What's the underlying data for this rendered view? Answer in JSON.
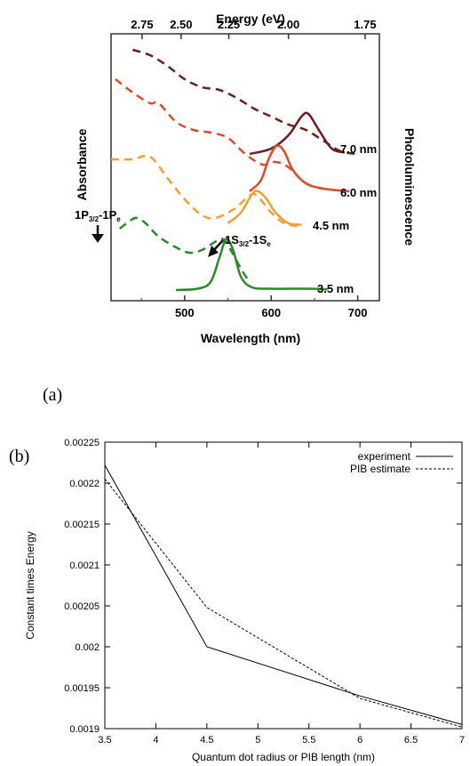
{
  "panel_labels": {
    "a": "(a)",
    "b": "(b)"
  },
  "chart_data": [
    {
      "type": "line",
      "xlabel": "Wavelength (nm)",
      "xticks": [
        "500",
        "600",
        "700"
      ],
      "top_axis_label": "Energy (eV)",
      "top_ticks": [
        "2.75",
        "2.50",
        "2.25",
        "2.00",
        "1.75"
      ],
      "ylabel_left": "Absorbance",
      "ylabel_right": "Photoluminescence",
      "xlim": [
        415,
        725
      ],
      "sizes": [
        {
          "label": "7.0 nm",
          "color": "#6b1e1e",
          "absorbance": [
            [
              440,
              0.94
            ],
            [
              460,
              0.92
            ],
            [
              480,
              0.88
            ],
            [
              500,
              0.83
            ],
            [
              520,
              0.8
            ],
            [
              540,
              0.79
            ],
            [
              560,
              0.76
            ],
            [
              580,
              0.72
            ],
            [
              600,
              0.69
            ],
            [
              620,
              0.66
            ],
            [
              640,
              0.64
            ],
            [
              660,
              0.6
            ],
            [
              680,
              0.56
            ],
            [
              700,
              0.55
            ]
          ],
          "pl": [
            [
              575,
              0.55
            ],
            [
              600,
              0.57
            ],
            [
              620,
              0.62
            ],
            [
              635,
              0.69
            ],
            [
              643,
              0.7
            ],
            [
              655,
              0.64
            ],
            [
              670,
              0.57
            ],
            [
              685,
              0.555
            ]
          ]
        },
        {
          "label": "6.0 nm",
          "color": "#e04a28",
          "absorbance": [
            [
              420,
              0.83
            ],
            [
              440,
              0.78
            ],
            [
              460,
              0.74
            ],
            [
              470,
              0.74
            ],
            [
              490,
              0.67
            ],
            [
              510,
              0.64
            ],
            [
              530,
              0.63
            ],
            [
              550,
              0.61
            ],
            [
              570,
              0.55
            ],
            [
              590,
              0.51
            ],
            [
              605,
              0.52
            ],
            [
              620,
              0.5
            ],
            [
              640,
              0.44
            ],
            [
              660,
              0.42
            ],
            [
              690,
              0.41
            ]
          ],
          "pl": [
            [
              575,
              0.41
            ],
            [
              588,
              0.45
            ],
            [
              597,
              0.53
            ],
            [
              606,
              0.58
            ],
            [
              615,
              0.56
            ],
            [
              625,
              0.49
            ],
            [
              640,
              0.44
            ],
            [
              660,
              0.42
            ],
            [
              690,
              0.41
            ]
          ]
        },
        {
          "label": "4.5 nm",
          "color": "#f0a030",
          "absorbance": [
            [
              415,
              0.53
            ],
            [
              440,
              0.53
            ],
            [
              460,
              0.54
            ],
            [
              480,
              0.46
            ],
            [
              500,
              0.38
            ],
            [
              520,
              0.32
            ],
            [
              535,
              0.31
            ],
            [
              550,
              0.33
            ],
            [
              560,
              0.35
            ],
            [
              570,
              0.38
            ],
            [
              580,
              0.4
            ],
            [
              590,
              0.37
            ],
            [
              600,
              0.33
            ],
            [
              615,
              0.29
            ],
            [
              630,
              0.28
            ]
          ],
          "pl": [
            [
              550,
              0.29
            ],
            [
              565,
              0.33
            ],
            [
              578,
              0.4
            ],
            [
              585,
              0.41
            ],
            [
              595,
              0.38
            ],
            [
              605,
              0.33
            ],
            [
              620,
              0.29
            ],
            [
              635,
              0.285
            ]
          ]
        },
        {
          "label": "3.5 nm",
          "color": "#2a8a2a",
          "absorbance": [
            [
              425,
              0.27
            ],
            [
              437,
              0.3
            ],
            [
              445,
              0.31
            ],
            [
              455,
              0.29
            ],
            [
              470,
              0.24
            ],
            [
              490,
              0.2
            ],
            [
              505,
              0.18
            ],
            [
              520,
              0.19
            ],
            [
              535,
              0.22
            ],
            [
              545,
              0.23
            ],
            [
              555,
              0.18
            ],
            [
              565,
              0.12
            ],
            [
              575,
              0.07
            ]
          ],
          "pl": [
            [
              490,
              0.04
            ],
            [
              515,
              0.045
            ],
            [
              530,
              0.07
            ],
            [
              540,
              0.16
            ],
            [
              548,
              0.23
            ],
            [
              556,
              0.19
            ],
            [
              565,
              0.09
            ],
            [
              578,
              0.05
            ],
            [
              600,
              0.045
            ],
            [
              640,
              0.045
            ],
            [
              665,
              0.043
            ]
          ]
        }
      ],
      "annotations": {
        "p_transition": {
          "main": "1P",
          "sub1": "3/2",
          "mid": "-1P",
          "sub2": "e"
        },
        "s_transition": {
          "main": "1S",
          "sub1": "3/2",
          "mid": "-1S",
          "sub2": "e"
        }
      }
    },
    {
      "type": "line",
      "xlabel": "Quantum dot radius or PIB length (nm)",
      "ylabel": "Constant times Energy",
      "xlim": [
        3.5,
        7
      ],
      "ylim": [
        0.0019,
        0.00225
      ],
      "xticks": [
        "3.5",
        "4",
        "4.5",
        "5",
        "5.5",
        "6",
        "6.5",
        "7"
      ],
      "yticks": [
        "0.0019",
        "0.00195",
        "0.002",
        "0.00205",
        "0.0021",
        "0.00215",
        "0.0022",
        "0.00225"
      ],
      "grid": false,
      "legend": "top-right",
      "series": [
        {
          "name": "experiment",
          "style": "solid",
          "x": [
            3.5,
            4.5,
            6,
            7
          ],
          "y": [
            0.002222,
            0.002,
            0.00194,
            0.001905
          ]
        },
        {
          "name": "PIB estimate",
          "style": "dashed",
          "x": [
            3.5,
            4.5,
            6,
            7
          ],
          "y": [
            0.002205,
            0.002048,
            0.001937,
            0.001902
          ]
        }
      ]
    }
  ]
}
